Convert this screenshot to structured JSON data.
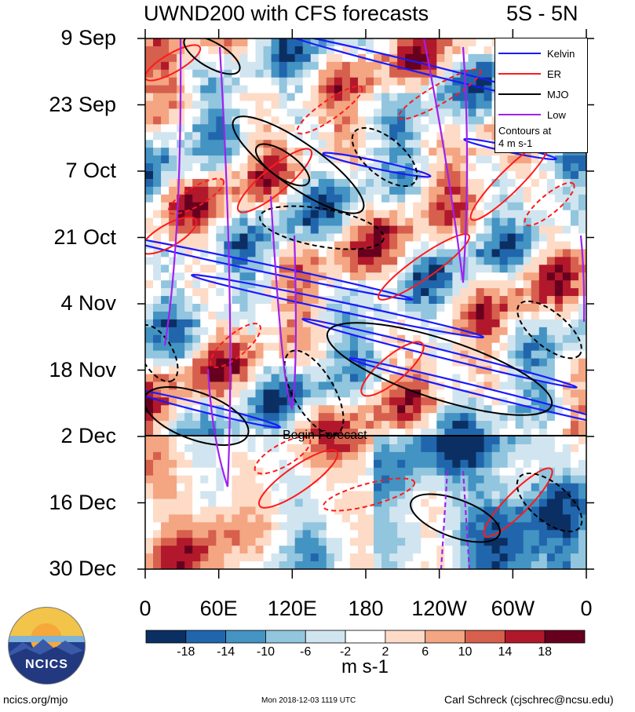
{
  "header": {
    "title": "UWND200 with CFS forecasts",
    "region": "5S - 5N"
  },
  "colors": {
    "kelvin": "#1a1aff",
    "er": "#ff1a1a",
    "mjo": "#000000",
    "low": "#a020f0",
    "scale": [
      "#0b2f63",
      "#2166ac",
      "#4393c3",
      "#92c5de",
      "#d1e5f0",
      "#ffffff",
      "#fddbc7",
      "#f4a582",
      "#d6604d",
      "#b2182b",
      "#67001f"
    ]
  },
  "chart_data": {
    "type": "heatmap",
    "title": "UWND200 with CFS forecasts",
    "subtitle": "5S - 5N",
    "x_axis": {
      "ticks": [
        "0",
        "60E",
        "120E",
        "180",
        "120W",
        "60W",
        "0"
      ],
      "range_deg_east": [
        0,
        360
      ]
    },
    "y_axis": {
      "ticks": [
        "9 Sep",
        "23 Sep",
        "7 Oct",
        "21 Oct",
        "4 Nov",
        "18 Nov",
        "2 Dec",
        "16 Dec",
        "30 Dec"
      ],
      "direction": "time increases downward"
    },
    "colorbar": {
      "labels": [
        "-18",
        "-14",
        "-10",
        "-6",
        "-2",
        "2",
        "6",
        "10",
        "14",
        "18"
      ],
      "units": "m s-1"
    },
    "legend": {
      "placement": "top-right",
      "entries": [
        "Kelvin",
        "ER",
        "MJO",
        "Low"
      ],
      "note_line1": "Contours at",
      "note_line2": "4 m s-1"
    },
    "annotation": "Begin Forecast",
    "forecast_start": "2 Dec",
    "grid": false
  },
  "footer": {
    "url": "ncics.org/mjo",
    "timestamp": "Mon 2018-12-03 1119 UTC",
    "author": "Carl Schreck (cjschrec@ncsu.edu)",
    "logo_text": "NCICS"
  }
}
